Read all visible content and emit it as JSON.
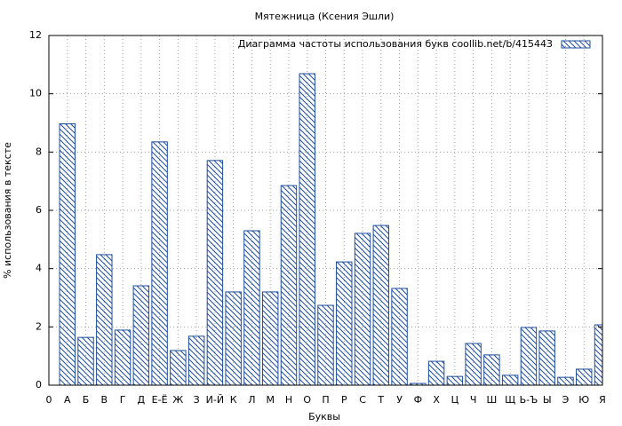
{
  "chart_data": {
    "type": "bar",
    "title": "Мятежница (Ксения Эшли)",
    "legend_label": "Диаграмма частоты использования букв  coollib.net/b/415443",
    "legend": "top right",
    "xlabel": "Буквы",
    "ylabel": "% использования в тексте",
    "categories": [
      "0",
      "А",
      "Б",
      "В",
      "Г",
      "Д",
      "Е-Ё",
      "Ж",
      "З",
      "И-Й",
      "К",
      "Л",
      "М",
      "Н",
      "О",
      "П",
      "Р",
      "С",
      "Т",
      "У",
      "Ф",
      "Х",
      "Ц",
      "Ч",
      "Ш",
      "Щ",
      "Ь-Ъ",
      "Ы",
      "Э",
      "Ю",
      "Я"
    ],
    "values": [
      null,
      8.97,
      1.64,
      4.48,
      1.89,
      3.41,
      8.35,
      1.19,
      1.68,
      7.71,
      3.2,
      5.3,
      3.2,
      6.85,
      10.69,
      2.74,
      4.23,
      5.21,
      5.48,
      3.32,
      0.06,
      0.82,
      0.3,
      1.43,
      1.04,
      0.34,
      1.98,
      1.86,
      0.27,
      0.55,
      2.07
    ],
    "color": "#1f4e9c",
    "ylim": [
      0,
      12
    ],
    "yticks": [
      0,
      2,
      4,
      6,
      8,
      10,
      12
    ],
    "grid": true
  }
}
